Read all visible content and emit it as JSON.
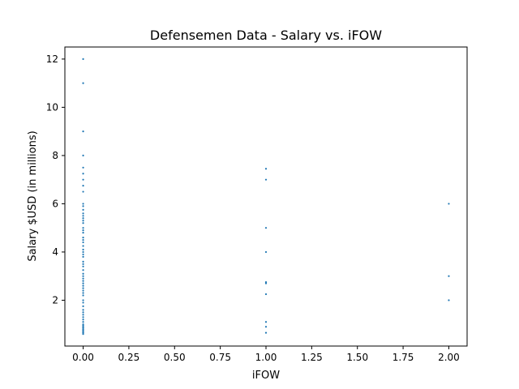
{
  "chart_data": {
    "type": "scatter",
    "title": "Defensemen Data - Salary vs. iFOW",
    "xlabel": "iFOW",
    "ylabel": "Salary $USD (in millions)",
    "xlim": [
      -0.1,
      2.1
    ],
    "ylim": [
      0.1,
      12.5
    ],
    "xticks": [
      0.0,
      0.25,
      0.5,
      0.75,
      1.0,
      1.25,
      1.5,
      1.75,
      2.0
    ],
    "xtick_labels": [
      "0.00",
      "0.25",
      "0.50",
      "0.75",
      "1.00",
      "1.25",
      "1.50",
      "1.75",
      "2.00"
    ],
    "yticks": [
      2,
      4,
      6,
      8,
      10,
      12
    ],
    "ytick_labels": [
      "2",
      "4",
      "6",
      "8",
      "10",
      "12"
    ],
    "grid": false,
    "marker_color": "#1f77b4",
    "series": [
      {
        "points": [
          [
            0,
            12.0
          ],
          [
            0,
            11.0
          ],
          [
            0,
            9.0
          ],
          [
            0,
            8.0
          ],
          [
            0,
            7.5
          ],
          [
            0,
            7.25
          ],
          [
            0,
            7.0
          ],
          [
            0,
            6.75
          ],
          [
            0,
            6.5
          ],
          [
            0,
            6.0
          ],
          [
            0,
            5.9
          ],
          [
            0,
            5.75
          ],
          [
            0,
            5.6
          ],
          [
            0,
            5.5
          ],
          [
            0,
            5.4
          ],
          [
            0,
            5.3
          ],
          [
            0,
            5.2
          ],
          [
            0,
            5.0
          ],
          [
            0,
            4.9
          ],
          [
            0,
            4.8
          ],
          [
            0,
            4.6
          ],
          [
            0,
            4.5
          ],
          [
            0,
            4.4
          ],
          [
            0,
            4.25
          ],
          [
            0,
            4.1
          ],
          [
            0,
            4.0
          ],
          [
            0,
            3.9
          ],
          [
            0,
            3.8
          ],
          [
            0,
            3.6
          ],
          [
            0,
            3.5
          ],
          [
            0,
            3.4
          ],
          [
            0,
            3.25
          ],
          [
            0,
            3.1
          ],
          [
            0,
            3.0
          ],
          [
            0,
            2.9
          ],
          [
            0,
            2.8
          ],
          [
            0,
            2.7
          ],
          [
            0,
            2.6
          ],
          [
            0,
            2.5
          ],
          [
            0,
            2.4
          ],
          [
            0,
            2.3
          ],
          [
            0,
            2.2
          ],
          [
            0,
            2.0
          ],
          [
            0,
            1.9
          ],
          [
            0,
            1.75
          ],
          [
            0,
            1.6
          ],
          [
            0,
            1.5
          ],
          [
            0,
            1.4
          ],
          [
            0,
            1.3
          ],
          [
            0,
            1.2
          ],
          [
            0,
            1.1
          ],
          [
            0,
            1.0
          ],
          [
            0,
            0.95
          ],
          [
            0,
            0.9
          ],
          [
            0,
            0.85
          ],
          [
            0,
            0.8
          ],
          [
            0,
            0.75
          ],
          [
            0,
            0.7
          ],
          [
            0,
            0.65
          ],
          [
            0,
            0.6
          ],
          [
            1,
            7.45
          ],
          [
            1,
            7.0
          ],
          [
            1,
            5.0
          ],
          [
            1,
            4.0
          ],
          [
            1,
            2.75
          ],
          [
            1,
            2.7
          ],
          [
            1,
            2.25
          ],
          [
            1,
            1.1
          ],
          [
            1,
            0.9
          ],
          [
            1,
            0.65
          ],
          [
            2,
            6.0
          ],
          [
            2,
            3.0
          ],
          [
            2,
            2.0
          ]
        ]
      }
    ]
  }
}
